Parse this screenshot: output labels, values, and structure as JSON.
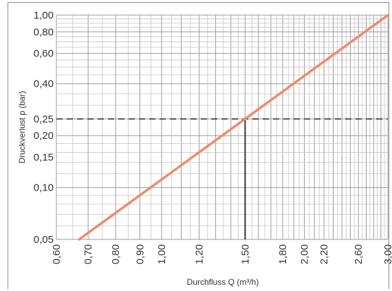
{
  "chart_data": {
    "type": "line",
    "title": "",
    "xlabel": "Durchfluss Q (m³/h)",
    "ylabel": "Druckverlust p (bar)",
    "x_scale": "log",
    "y_scale": "log",
    "xlim": [
      0.6,
      3.0
    ],
    "ylim": [
      0.05,
      1.0
    ],
    "x_tick_labels": [
      "0,60",
      "0,70",
      "0,80",
      "0,90",
      "1,00",
      "1,20",
      "1,50",
      "1,80",
      "2,00",
      "2,20",
      "2,60",
      "3,00"
    ],
    "x_tick_values": [
      0.6,
      0.7,
      0.8,
      0.9,
      1.0,
      1.2,
      1.5,
      1.8,
      2.0,
      2.2,
      2.6,
      3.0
    ],
    "y_tick_labels": [
      "1,00",
      "0,80",
      "0,60",
      "0,40",
      "0,25",
      "0,20",
      "0,15",
      "0,10",
      "0,05"
    ],
    "y_tick_values": [
      1.0,
      0.8,
      0.6,
      0.4,
      0.25,
      0.2,
      0.15,
      0.1,
      0.05
    ],
    "grid": true,
    "legend": "none",
    "series": [
      {
        "color": "#f08a6a",
        "x": [
          0.67,
          3.0
        ],
        "y": [
          0.05,
          1.0
        ]
      }
    ],
    "reference": {
      "x": 1.5,
      "y": 0.25,
      "h_line_style": "dashed",
      "v_line_style": "solid",
      "color": "#333333"
    }
  }
}
